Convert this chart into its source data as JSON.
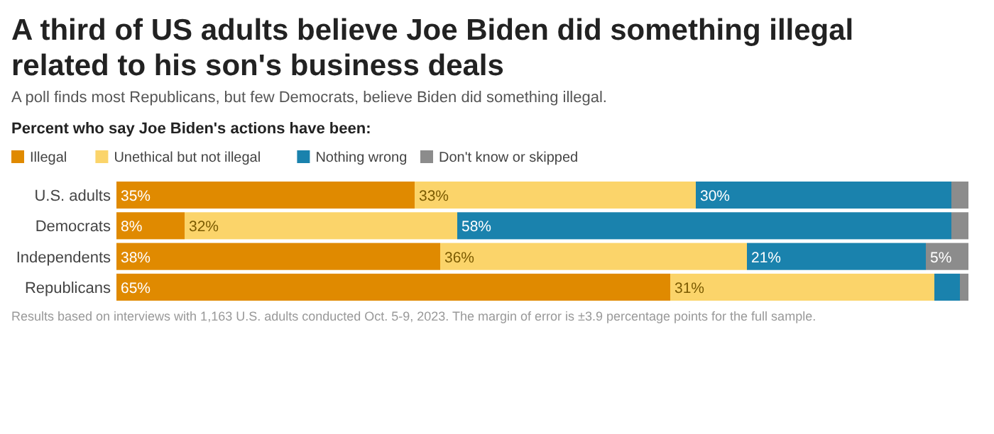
{
  "chart_data": {
    "type": "bar",
    "orientation": "horizontal",
    "stacked": true,
    "title": "A third of US adults believe Joe Biden did something illegal related to his son's business deals",
    "subtitle": "A poll finds most Republicans, but few Democrats, believe Biden did something illegal.",
    "legend_title": "Percent who say Joe Biden's actions have been:",
    "legend": "top left",
    "categories": [
      "U.S. adults",
      "Democrats",
      "Independents",
      "Republicans"
    ],
    "xlim": [
      0,
      100
    ],
    "series": [
      {
        "name": "Illegal",
        "color": "#e08a00",
        "values": [
          35,
          8,
          38,
          65
        ],
        "value_labels": [
          "35%",
          "8%",
          "38%",
          "65%"
        ]
      },
      {
        "name": "Unethical but not illegal",
        "color": "#fbd46a",
        "values": [
          33,
          32,
          36,
          31
        ],
        "value_labels": [
          "33%",
          "32%",
          "36%",
          "31%"
        ]
      },
      {
        "name": "Nothing wrong",
        "color": "#1a82ad",
        "values": [
          30,
          58,
          21,
          3
        ],
        "value_labels": [
          "30%",
          "58%",
          "21%",
          null
        ]
      },
      {
        "name": "Don't know or skipped",
        "color": "#8c8c8c",
        "values": [
          2,
          2,
          5,
          1
        ],
        "value_labels": [
          null,
          null,
          "5%",
          null
        ]
      }
    ],
    "annotations": [
      "Results based on interviews with 1,163 U.S. adults conducted Oct. 5-9, 2023. The margin of error is ±3.9 percentage points for the full sample."
    ]
  }
}
